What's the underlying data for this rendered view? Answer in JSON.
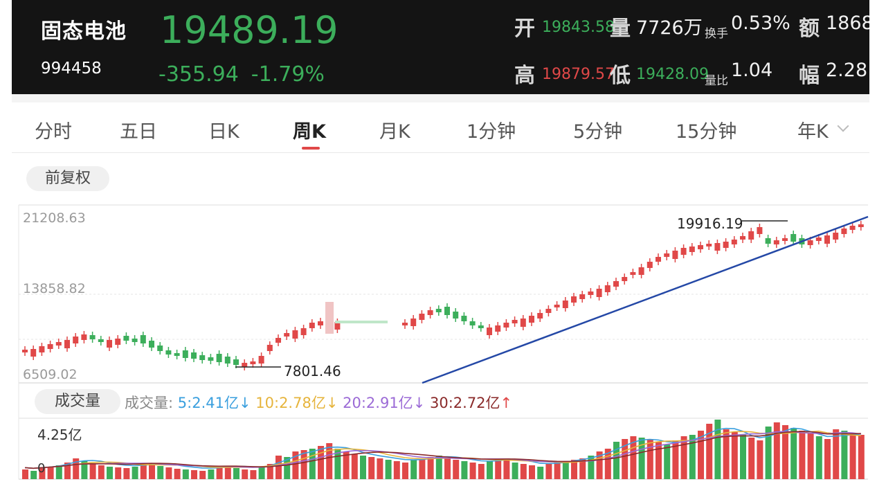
{
  "header": {
    "name": "固态电池",
    "code": "994458",
    "price": "19489.19",
    "change": "-355.94",
    "change_pct": "-1.79%",
    "open_label": "开",
    "open_value": "19843.58",
    "volume_label": "量",
    "volume_value": "7726万",
    "turnover_label": "换手",
    "turnover_value": "0.53%",
    "amount_label": "额",
    "amount_value": "1868",
    "high_label": "高",
    "high_value": "19879.57",
    "low_label": "低",
    "low_value": "19428.09",
    "vol_ratio_label": "量比",
    "vol_ratio_value": "1.04",
    "amplitude_label": "幅",
    "amplitude_value": "2.28"
  },
  "tabs": [
    {
      "label": "分时"
    },
    {
      "label": "五日"
    },
    {
      "label": "日K"
    },
    {
      "label": "周K"
    },
    {
      "label": "月K"
    },
    {
      "label": "1分钟"
    },
    {
      "label": "5分钟"
    },
    {
      "label": "15分钟"
    },
    {
      "label": "年K"
    }
  ],
  "active_tab": "周K",
  "adjust_label": "前复权",
  "price_axis": {
    "top": "21208.63",
    "mid": "13858.82",
    "bottom": "6509.02"
  },
  "annotations": {
    "high": "19916.19",
    "low": "7801.46"
  },
  "volume": {
    "chip_label": "成交量",
    "legend_prefix": "成交量:",
    "ma5": "5:2.41亿",
    "ma10": "10:2.78亿",
    "ma20": "20:2.91亿",
    "ma30": "30:2.72亿",
    "axis_top": "4.25亿",
    "axis_bottom": "0"
  },
  "colors": {
    "up": "#e04848",
    "down": "#3cae5b",
    "trendline": "#2448a6",
    "ma5": "#3a9fde",
    "ma10": "#e6b43c",
    "ma20": "#9b6ad6",
    "ma30": "#8a2a2a"
  }
}
